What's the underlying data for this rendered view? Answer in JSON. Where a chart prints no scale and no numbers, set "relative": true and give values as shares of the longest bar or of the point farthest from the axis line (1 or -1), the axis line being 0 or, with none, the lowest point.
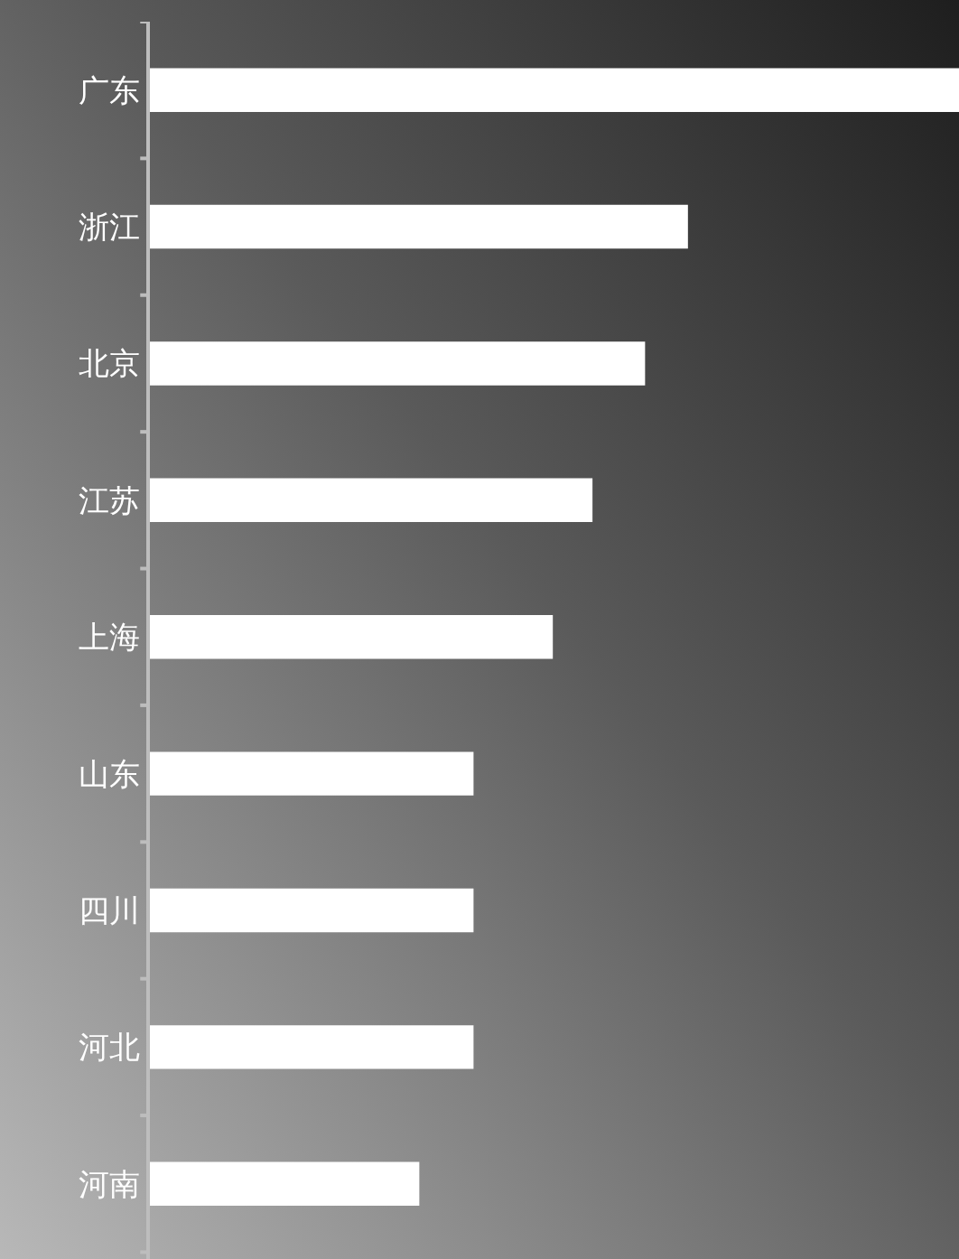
{
  "chart_data": {
    "type": "bar",
    "orientation": "horizontal",
    "relative": true,
    "categories": [
      "广东",
      "浙江",
      "北京",
      "江苏",
      "上海",
      "山东",
      "四川",
      "河北",
      "河南"
    ],
    "values": [
      1,
      0.665,
      0.612,
      0.547,
      0.498,
      0.4,
      0.4,
      0.4,
      0.333
    ],
    "color": "#ffffff"
  }
}
